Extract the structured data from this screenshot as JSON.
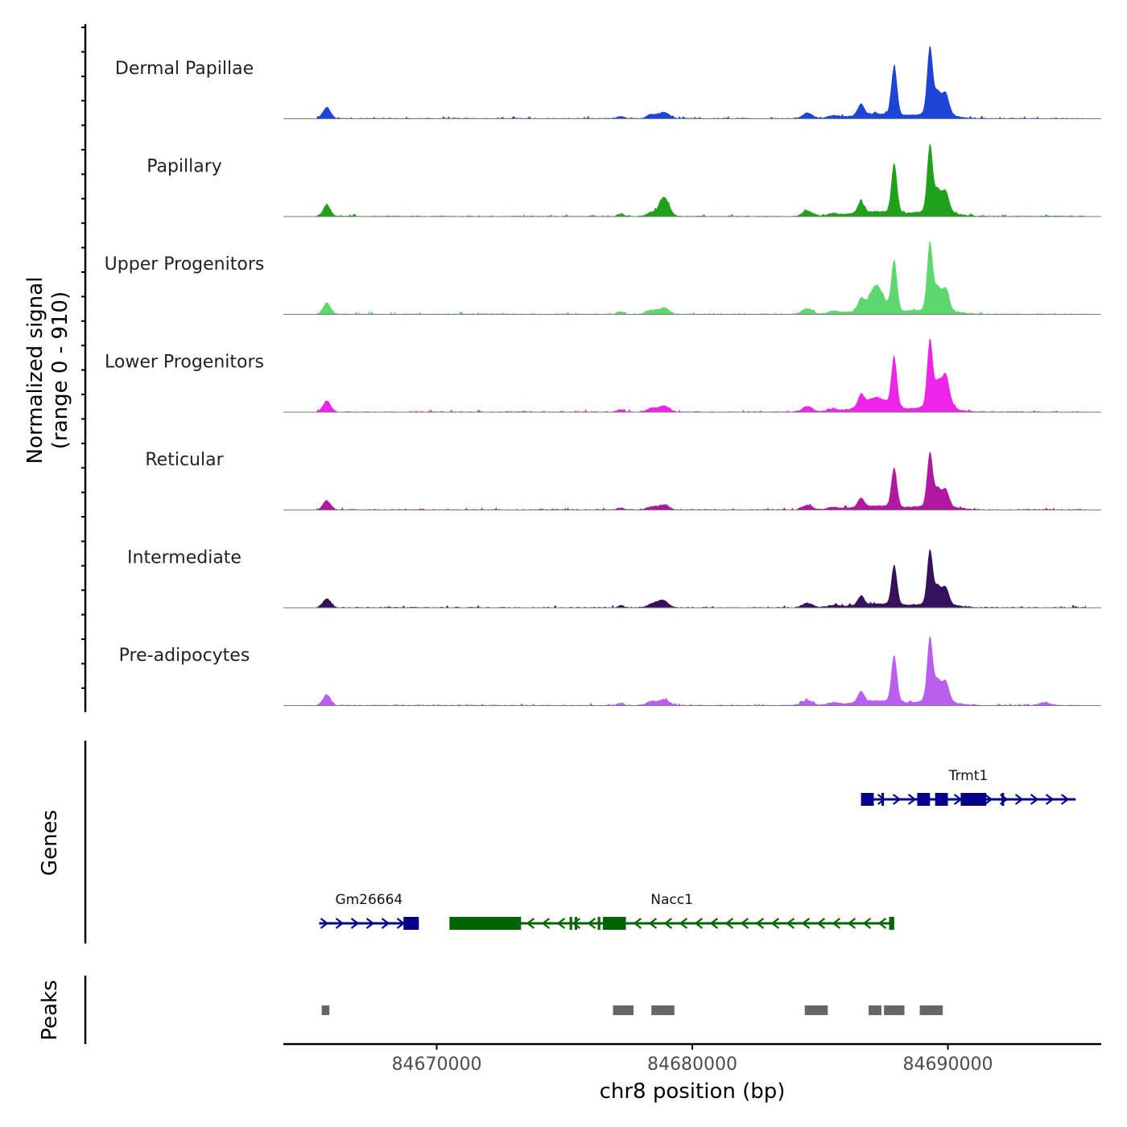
{
  "chart_data": {
    "type": "area",
    "region": {
      "chrom": "chr8",
      "start": 84664000,
      "end": 84696000
    },
    "xlabel": "chr8 position (bp)",
    "xticks": [
      84670000,
      84680000,
      84690000
    ],
    "xtick_labels": [
      "84670000",
      "84680000",
      "84690000"
    ],
    "ylabel_line1": "Normalized signal",
    "ylabel_line2": "(range 0 - 910)",
    "ylim": [
      0,
      910
    ],
    "genes_label": "Genes",
    "peaks_label": "Peaks",
    "baseline_peaks": [
      {
        "pos": 84665700,
        "w": 150,
        "h": 0.14
      },
      {
        "pos": 84677200,
        "w": 120,
        "h": 0.03
      },
      {
        "pos": 84678400,
        "w": 180,
        "h": 0.05
      },
      {
        "pos": 84678900,
        "w": 200,
        "h": 0.08
      },
      {
        "pos": 84684500,
        "w": 200,
        "h": 0.07
      },
      {
        "pos": 84685500,
        "w": 200,
        "h": 0.03
      },
      {
        "pos": 84686600,
        "w": 120,
        "h": 0.14
      },
      {
        "pos": 84687200,
        "w": 900,
        "h": 0.06
      },
      {
        "pos": 84687900,
        "w": 110,
        "h": 0.62
      },
      {
        "pos": 84689300,
        "w": 110,
        "h": 0.85
      },
      {
        "pos": 84689600,
        "w": 110,
        "h": 0.25
      },
      {
        "pos": 84689900,
        "w": 140,
        "h": 0.28
      },
      {
        "pos": 84689500,
        "w": 700,
        "h": 0.06
      }
    ],
    "tracks": [
      {
        "name": "Dermal Papillae",
        "color": "#1c44d6",
        "scale": 1.0,
        "extra": []
      },
      {
        "name": "Papillary",
        "color": "#21a11b",
        "scale": 1.0,
        "extra": [
          {
            "pos": 84678900,
            "w": 180,
            "h": 0.16
          }
        ]
      },
      {
        "name": "Upper Progenitors",
        "color": "#5cd86e",
        "scale": 1.0,
        "extra": [
          {
            "pos": 84687200,
            "w": 260,
            "h": 0.3
          }
        ]
      },
      {
        "name": "Lower Progenitors",
        "color": "#ee24e9",
        "scale": 1.0,
        "extra": [
          {
            "pos": 84687200,
            "w": 400,
            "h": 0.12
          },
          {
            "pos": 84689900,
            "w": 200,
            "h": 0.15
          }
        ]
      },
      {
        "name": "Reticular",
        "color": "#b1179f",
        "scale": 0.8,
        "extra": []
      },
      {
        "name": "Intermediate",
        "color": "#35115e",
        "scale": 0.8,
        "extra": [
          {
            "pos": 84678700,
            "w": 180,
            "h": 0.05
          }
        ]
      },
      {
        "name": "Pre-adipocytes",
        "color": "#b85ff0",
        "scale": 0.95,
        "extra": [
          {
            "pos": 84693800,
            "w": 200,
            "h": 0.04
          }
        ]
      }
    ],
    "genes": [
      {
        "name": "Trmt1",
        "strand": "+",
        "row": 0,
        "color": "#00008b",
        "start": 84686600,
        "end": 84695000,
        "exons": [
          [
            84686600,
            84687100
          ],
          [
            84687400,
            84687500
          ],
          [
            84688800,
            84689300
          ],
          [
            84689500,
            84690000
          ],
          [
            84690500,
            84691500
          ],
          [
            84692100,
            84692200
          ]
        ]
      },
      {
        "name": "Gm26664",
        "strand": "+",
        "row": 1,
        "color": "#00008b",
        "start": 84665400,
        "end": 84669300,
        "exons": [
          [
            84668700,
            84669300
          ]
        ]
      },
      {
        "name": "Nacc1",
        "strand": "-",
        "row": 1,
        "color": "#006400",
        "start": 84670500,
        "end": 84687900,
        "exons": [
          [
            84670500,
            84673300
          ],
          [
            84675200,
            84675300
          ],
          [
            84675400,
            84675500
          ],
          [
            84676300,
            84676400
          ],
          [
            84676500,
            84677400
          ],
          [
            84687700,
            84687900
          ]
        ]
      }
    ],
    "peaks": [
      [
        84665500,
        84665800
      ],
      [
        84676900,
        84677700
      ],
      [
        84678400,
        84679300
      ],
      [
        84684400,
        84685300
      ],
      [
        84686900,
        84687400
      ],
      [
        84687500,
        84688300
      ],
      [
        84688900,
        84689800
      ]
    ],
    "colors": {
      "axis": "#000000",
      "tick_label": "#4d4d4d",
      "baseline": "#7a7a7a",
      "peak": "#666666"
    }
  }
}
